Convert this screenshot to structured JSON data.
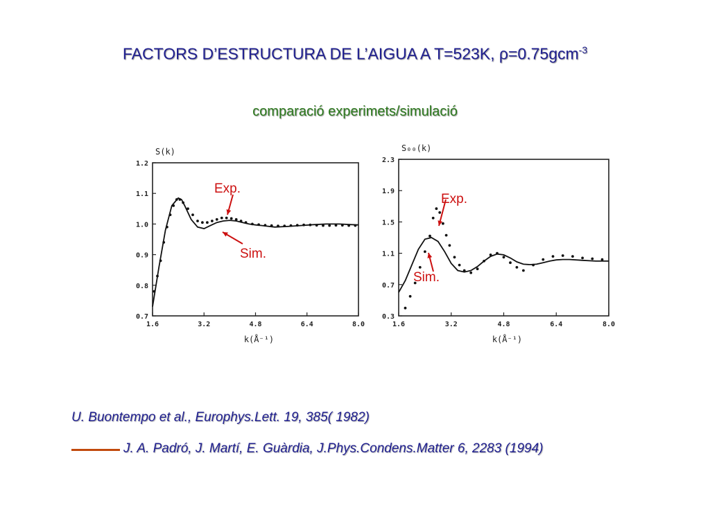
{
  "title": {
    "main": "FACTORS D’ESTRUCTURA DE L’AIGUA A T=523K, ρ=0.75gcm",
    "sup": "-3"
  },
  "subtitle": "comparació experimets/simulació",
  "references": {
    "dots_marker": "",
    "experiment": "U. Buontempo et al., Europhys.Lett. 19, 385( 1982)",
    "simulation": "J. A. Padró, J. Martí, E. Guàrdia, J.Phys.Condens.Matter 6, 2283 (1994)",
    "line_color": "#c24a0c"
  },
  "colors": {
    "title": "#1f1f8f",
    "subtitle": "#2d7a1e",
    "annotation": "#cc1010"
  },
  "chart_data": [
    {
      "type": "line",
      "ylabel": "S(k)",
      "xlabel": "k(Å⁻¹)",
      "xlim": [
        1.6,
        8.0
      ],
      "ylim": [
        0.7,
        1.2
      ],
      "xticks": [
        "1.6",
        "3.2",
        "4.8",
        "6.4",
        "8.0"
      ],
      "yticks": [
        "0.7",
        "0.8",
        "0.9",
        "1.0",
        "1.1",
        "1.2"
      ],
      "annotations": [
        "Exp.",
        "Sim."
      ],
      "series": [
        {
          "style": "line",
          "x": [
            1.6,
            1.8,
            2.0,
            2.2,
            2.4,
            2.5,
            2.6,
            2.8,
            3.0,
            3.2,
            3.4,
            3.6,
            3.8,
            4.0,
            4.2,
            4.4,
            4.6,
            4.8,
            5.0,
            5.4,
            5.8,
            6.2,
            6.6,
            7.0,
            7.4,
            7.8,
            8.0
          ],
          "y": [
            0.73,
            0.86,
            0.98,
            1.06,
            1.085,
            1.08,
            1.06,
            1.015,
            0.99,
            0.985,
            0.995,
            1.005,
            1.01,
            1.012,
            1.01,
            1.005,
            1.0,
            0.997,
            0.995,
            0.99,
            0.992,
            0.995,
            0.998,
            1.0,
            1.0,
            0.998,
            0.997
          ]
        },
        {
          "style": "dots",
          "x": [
            1.65,
            1.75,
            1.85,
            1.95,
            2.05,
            2.15,
            2.25,
            2.35,
            2.45,
            2.55,
            2.7,
            2.85,
            3.0,
            3.15,
            3.3,
            3.45,
            3.6,
            3.75,
            3.9,
            4.05,
            4.2,
            4.35,
            4.5,
            4.7,
            4.9,
            5.1,
            5.3,
            5.5,
            5.7,
            5.9,
            6.1,
            6.3,
            6.5,
            6.7,
            6.9,
            7.1,
            7.3,
            7.5,
            7.7,
            7.9
          ],
          "y": [
            0.78,
            0.83,
            0.88,
            0.94,
            0.99,
            1.03,
            1.06,
            1.08,
            1.08,
            1.07,
            1.05,
            1.03,
            1.01,
            1.005,
            1.005,
            1.01,
            1.015,
            1.02,
            1.02,
            1.018,
            1.015,
            1.01,
            1.005,
            1.0,
            0.998,
            0.996,
            0.995,
            0.994,
            0.994,
            0.995,
            0.996,
            0.997,
            0.997,
            0.996,
            0.995,
            0.995,
            0.996,
            0.996,
            0.995,
            0.995
          ]
        }
      ]
    },
    {
      "type": "line",
      "ylabel": "S₀₀(k)",
      "xlabel": "k(Å⁻¹)",
      "xlim": [
        1.6,
        8.0
      ],
      "ylim": [
        0.3,
        2.3
      ],
      "xticks": [
        "1.6",
        "3.2",
        "4.8",
        "6.4",
        "8.0"
      ],
      "yticks": [
        "0.3",
        "0.7",
        "1.1",
        "1.5",
        "1.9",
        "2.3"
      ],
      "annotations": [
        "Exp.",
        "Sim."
      ],
      "series": [
        {
          "style": "line",
          "x": [
            1.6,
            1.8,
            2.0,
            2.2,
            2.4,
            2.6,
            2.8,
            3.0,
            3.2,
            3.4,
            3.6,
            3.8,
            4.0,
            4.2,
            4.4,
            4.6,
            4.8,
            5.0,
            5.2,
            5.4,
            5.6,
            5.8,
            6.0,
            6.2,
            6.4,
            6.6,
            6.8,
            7.0,
            7.2,
            7.6,
            8.0
          ],
          "y": [
            0.6,
            0.75,
            0.95,
            1.15,
            1.28,
            1.3,
            1.25,
            1.12,
            0.97,
            0.88,
            0.86,
            0.88,
            0.93,
            1.0,
            1.06,
            1.09,
            1.08,
            1.04,
            0.99,
            0.96,
            0.955,
            0.96,
            0.98,
            1.0,
            1.015,
            1.02,
            1.02,
            1.015,
            1.01,
            1.0,
            1.0
          ]
        },
        {
          "style": "dots",
          "x": [
            1.8,
            1.95,
            2.1,
            2.25,
            2.4,
            2.55,
            2.65,
            2.75,
            2.85,
            2.95,
            3.05,
            3.15,
            3.3,
            3.45,
            3.6,
            3.8,
            4.0,
            4.2,
            4.4,
            4.6,
            4.8,
            5.0,
            5.2,
            5.4,
            5.7,
            6.0,
            6.3,
            6.6,
            6.9,
            7.2,
            7.5,
            7.8
          ],
          "y": [
            0.4,
            0.55,
            0.72,
            0.92,
            1.12,
            1.32,
            1.55,
            1.67,
            1.62,
            1.48,
            1.33,
            1.2,
            1.05,
            0.95,
            0.88,
            0.85,
            0.9,
            1.0,
            1.08,
            1.1,
            1.05,
            0.98,
            0.92,
            0.88,
            0.95,
            1.02,
            1.06,
            1.07,
            1.06,
            1.04,
            1.03,
            1.02
          ]
        }
      ]
    }
  ]
}
